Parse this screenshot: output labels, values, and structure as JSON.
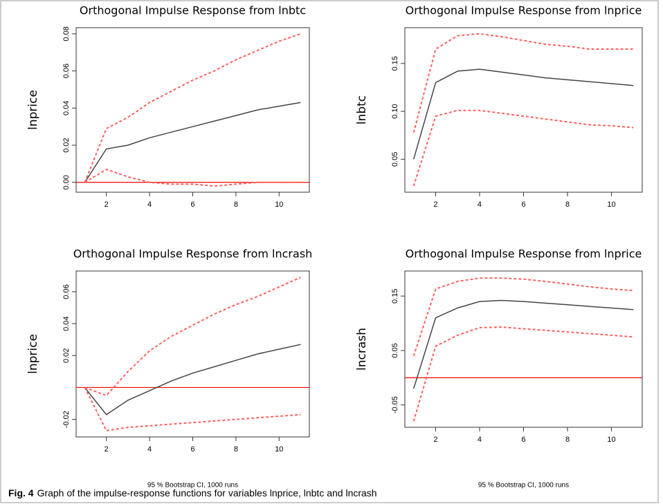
{
  "chart_data": [
    {
      "type": "line",
      "title": "Orthogonal Impulse Response from lnbtc",
      "ylabel": "lnprice",
      "x": [
        1,
        2,
        3,
        4,
        5,
        6,
        7,
        8,
        9,
        10,
        11
      ],
      "xlim": [
        0.6,
        11.4
      ],
      "xticks": [
        2,
        4,
        6,
        8,
        10
      ],
      "ylim": [
        -0.0053,
        0.0833
      ],
      "yticks": [
        {
          "value": 0,
          "label": "0.00"
        },
        0.02,
        0.04,
        0.06,
        0.08
      ],
      "hline": {
        "value": 0,
        "color": "#ff0000"
      },
      "series": [
        {
          "color": "#444444",
          "style": "solid",
          "values": [
            0,
            0.018,
            0.02,
            0.024,
            0.027,
            0.03,
            0.033,
            0.036,
            0.039,
            0.041,
            0.043
          ]
        },
        {
          "color": "#ff6060",
          "style": "dashed",
          "values": [
            0,
            0.029,
            0.035,
            0.043,
            0.049,
            0.055,
            0.06,
            0.066,
            0.071,
            0.076,
            0.08
          ]
        },
        {
          "color": "#ff6060",
          "style": "dashed",
          "values": [
            0,
            0.007,
            0.003,
            0.0,
            -0.001,
            -0.001,
            -0.002,
            -0.001,
            0.0,
            0.0,
            0.0
          ]
        }
      ]
    },
    {
      "type": "line",
      "title": "Orthogonal Impulse Response from lnprice",
      "ylabel": "lnbtc",
      "x": [
        1,
        2,
        3,
        4,
        5,
        6,
        7,
        8,
        9,
        10,
        11
      ],
      "xlim": [
        0.6,
        11.4
      ],
      "xticks": [
        2,
        4,
        6,
        8,
        10
      ],
      "ylim": [
        0.0156,
        0.1874
      ],
      "yticks": [
        0.05,
        {
          "value": 0.1,
          "label": "0.10"
        },
        0.15
      ],
      "series": [
        {
          "color": "#444444",
          "style": "solid",
          "values": [
            0.05,
            0.13,
            0.142,
            0.144,
            0.141,
            0.138,
            0.135,
            0.133,
            0.131,
            0.129,
            0.127
          ]
        },
        {
          "color": "#ff6060",
          "style": "dashed",
          "values": [
            0.078,
            0.165,
            0.179,
            0.181,
            0.178,
            0.174,
            0.17,
            0.168,
            0.165,
            0.165,
            0.165
          ]
        },
        {
          "color": "#ff6060",
          "style": "dashed",
          "values": [
            0.022,
            0.095,
            0.101,
            0.101,
            0.098,
            0.095,
            0.092,
            0.089,
            0.086,
            0.085,
            0.083
          ]
        }
      ]
    },
    {
      "type": "line",
      "title": "Orthogonal Impulse Response from lncrash",
      "ylabel": "lnprice",
      "note": "95 % Bootstrap CI,  1000 runs",
      "x": [
        1,
        2,
        3,
        4,
        5,
        6,
        7,
        8,
        9,
        10,
        11
      ],
      "xlim": [
        0.6,
        11.4
      ],
      "xticks": [
        2,
        4,
        6,
        8,
        10
      ],
      "ylim": [
        -0.031,
        0.073
      ],
      "yticks": [
        -0.02,
        0.02,
        0.04,
        0.06
      ],
      "hline": {
        "value": 0,
        "color": "#ff0000"
      },
      "series": [
        {
          "color": "#444444",
          "style": "solid",
          "values": [
            0,
            -0.017,
            -0.008,
            -0.002,
            0.004,
            0.009,
            0.013,
            0.017,
            0.021,
            0.024,
            0.027
          ]
        },
        {
          "color": "#ff6060",
          "style": "dashed",
          "values": [
            0,
            -0.005,
            0.01,
            0.023,
            0.032,
            0.039,
            0.046,
            0.052,
            0.057,
            0.063,
            0.069
          ]
        },
        {
          "color": "#ff6060",
          "style": "dashed",
          "values": [
            0,
            -0.027,
            -0.025,
            -0.024,
            -0.023,
            -0.022,
            -0.021,
            -0.02,
            -0.019,
            -0.018,
            -0.017
          ]
        }
      ]
    },
    {
      "type": "line",
      "title": "Orthogonal Impulse Response from lnprice",
      "ylabel": "lncrash",
      "note": "95 % Bootstrap CI,  1000 runs",
      "x": [
        1,
        2,
        3,
        4,
        5,
        6,
        7,
        8,
        9,
        10,
        11
      ],
      "xlim": [
        0.6,
        11.4
      ],
      "xticks": [
        2,
        4,
        6,
        8,
        10
      ],
      "ylim": [
        -0.091,
        0.196
      ],
      "yticks": [
        -0.05,
        0.05,
        0.15
      ],
      "hline": {
        "value": 0,
        "color": "#ff0000"
      },
      "series": [
        {
          "color": "#444444",
          "style": "solid",
          "values": [
            -0.02,
            0.11,
            0.128,
            0.14,
            0.142,
            0.14,
            0.137,
            0.134,
            0.131,
            0.128,
            0.125
          ]
        },
        {
          "color": "#ff6060",
          "style": "dashed",
          "values": [
            0.04,
            0.163,
            0.177,
            0.183,
            0.183,
            0.181,
            0.177,
            0.172,
            0.167,
            0.163,
            0.16
          ]
        },
        {
          "color": "#ff6060",
          "style": "dashed",
          "values": [
            -0.08,
            0.058,
            0.078,
            0.092,
            0.093,
            0.09,
            0.087,
            0.084,
            0.081,
            0.078,
            0.075
          ]
        }
      ]
    }
  ],
  "caption": {
    "label": "Fig. 4",
    "text": "Graph of the impulse-response functions for variables lnprice, lnbtc and lncrash"
  }
}
